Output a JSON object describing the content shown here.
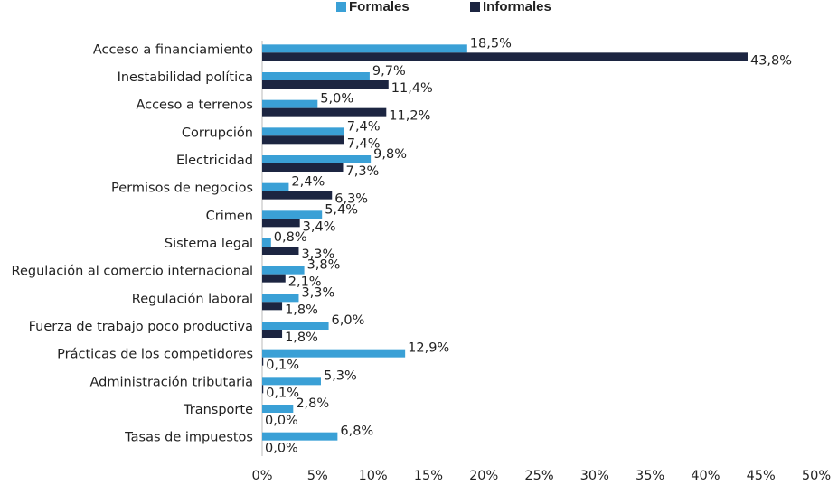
{
  "chart_data": {
    "type": "bar",
    "orientation": "horizontal",
    "categories": [
      "Acceso a financiamiento",
      "Inestabilidad política",
      "Acceso a terrenos",
      "Corrupción",
      "Electricidad",
      "Permisos de negocios",
      "Crimen",
      "Sistema legal",
      "Regulación al comercio internacional",
      "Regulación laboral",
      "Fuerza de trabajo poco productiva",
      "Prácticas de los competidores",
      "Administración tributaria",
      "Transporte",
      "Tasas de impuestos"
    ],
    "series": [
      {
        "name": "Formales",
        "color": "#3aa0d6",
        "values": [
          18.5,
          9.7,
          5.0,
          7.4,
          9.8,
          2.4,
          5.4,
          0.8,
          3.8,
          3.3,
          6.0,
          12.9,
          5.3,
          2.8,
          6.8
        ],
        "value_labels": [
          "18,5%",
          "9,7%",
          "5,0%",
          "7,4%",
          "9,8%",
          "2,4%",
          "5,4%",
          "0,8%",
          "3,8%",
          "3,3%",
          "6,0%",
          "12,9%",
          "5,3%",
          "2,8%",
          "6,8%"
        ]
      },
      {
        "name": "Informales",
        "color": "#1c2541",
        "values": [
          43.8,
          11.4,
          11.2,
          7.4,
          7.3,
          6.3,
          3.4,
          3.3,
          2.1,
          1.8,
          1.8,
          0.1,
          0.1,
          0.0,
          0.0
        ],
        "value_labels": [
          "43,8%",
          "11,4%",
          "11,2%",
          "7,4%",
          "7,3%",
          "6,3%",
          "3,4%",
          "3,3%",
          "2,1%",
          "1,8%",
          "1,8%",
          "0,1%",
          "0,1%",
          "0,0%",
          "0,0%"
        ]
      }
    ],
    "xlim": [
      0,
      50
    ],
    "xticks": [
      {
        "value": 0,
        "label": "0%"
      },
      {
        "value": 5,
        "label": "5%"
      },
      {
        "value": 10,
        "label": "10%"
      },
      {
        "value": 15,
        "label": "15%"
      },
      {
        "value": 20,
        "label": "20%"
      },
      {
        "value": 25,
        "label": "25%"
      },
      {
        "value": 30,
        "label": "30%"
      },
      {
        "value": 35,
        "label": "35%"
      },
      {
        "value": 40,
        "label": "40%"
      },
      {
        "value": 45,
        "label": "45%"
      },
      {
        "value": 50,
        "label": "50%"
      }
    ],
    "legend": "top",
    "grid": false
  }
}
